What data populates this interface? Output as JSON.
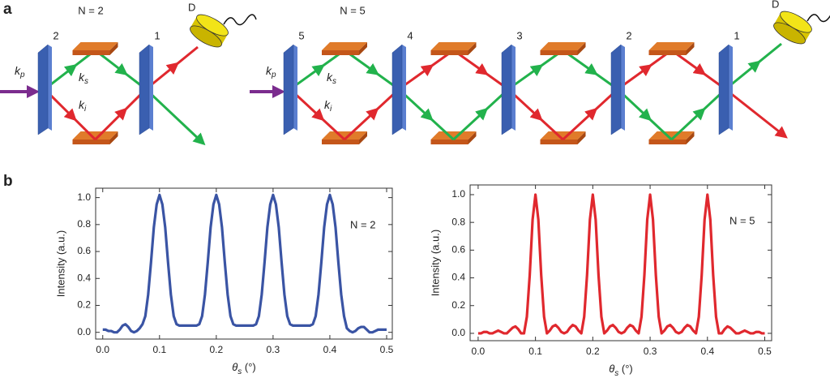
{
  "panel_labels": [
    "a",
    "b"
  ],
  "diagram": {
    "left": {
      "title": "N = 2",
      "detector": "D",
      "splitters": [
        "2",
        "1"
      ],
      "k_labels": [
        {
          "k": "k",
          "sub": "p"
        },
        {
          "k": "k",
          "sub": "s"
        },
        {
          "k": "k",
          "sub": "i"
        }
      ]
    },
    "right": {
      "title": "N = 5",
      "detector": "D",
      "splitters": [
        "5",
        "4",
        "3",
        "2",
        "1"
      ],
      "k_labels": [
        {
          "k": "k",
          "sub": "p"
        },
        {
          "k": "k",
          "sub": "s"
        },
        {
          "k": "k",
          "sub": "i"
        }
      ]
    }
  },
  "chart_data": [
    {
      "type": "line",
      "color": "#3a54a4",
      "annotation": "N = 2",
      "x_label": {
        "symbol": "θ",
        "sub": "s",
        "unit": " (°)"
      },
      "y_label": "Intensity (a.u.)",
      "xlim": [
        -0.0125,
        0.51
      ],
      "ylim": [
        -0.05,
        1.07
      ],
      "xticks": [
        {
          "value": 0,
          "label": "0.0"
        },
        0.1,
        0.2,
        0.3,
        0.4,
        0.5
      ],
      "yticks": [
        {
          "value": 0,
          "label": "0.0"
        },
        0.2,
        0.4,
        0.6,
        0.8,
        {
          "value": 1,
          "label": "1.0"
        }
      ],
      "x": [
        0,
        0.005,
        0.01,
        0.015,
        0.02,
        0.025,
        0.03,
        0.035,
        0.04,
        0.045,
        0.05,
        0.055,
        0.06,
        0.065,
        0.07,
        0.075,
        0.08,
        0.085,
        0.09,
        0.095,
        0.1,
        0.105,
        0.11,
        0.115,
        0.12,
        0.125,
        0.13,
        0.135,
        0.14,
        0.145,
        0.15,
        0.155,
        0.16,
        0.165,
        0.17,
        0.175,
        0.18,
        0.185,
        0.19,
        0.195,
        0.2,
        0.205,
        0.21,
        0.215,
        0.22,
        0.225,
        0.23,
        0.235,
        0.24,
        0.245,
        0.25,
        0.255,
        0.26,
        0.265,
        0.27,
        0.275,
        0.28,
        0.285,
        0.29,
        0.295,
        0.3,
        0.305,
        0.31,
        0.315,
        0.32,
        0.325,
        0.33,
        0.335,
        0.34,
        0.345,
        0.35,
        0.355,
        0.36,
        0.365,
        0.37,
        0.375,
        0.38,
        0.385,
        0.39,
        0.395,
        0.4,
        0.405,
        0.41,
        0.415,
        0.42,
        0.425,
        0.43,
        0.435,
        0.44,
        0.445,
        0.45,
        0.455,
        0.46,
        0.465,
        0.47,
        0.475,
        0.48,
        0.485,
        0.49,
        0.495,
        0.5
      ],
      "values": [
        0.02,
        0.02,
        0.01,
        0.01,
        0,
        0,
        0.02,
        0.05,
        0.06,
        0.04,
        0.01,
        0,
        0.01,
        0.03,
        0.06,
        0.12,
        0.28,
        0.52,
        0.78,
        0.95,
        1.02,
        0.95,
        0.78,
        0.52,
        0.28,
        0.12,
        0.06,
        0.05,
        0.05,
        0.05,
        0.05,
        0.05,
        0.05,
        0.05,
        0.06,
        0.12,
        0.28,
        0.52,
        0.78,
        0.95,
        1.02,
        0.95,
        0.78,
        0.52,
        0.28,
        0.12,
        0.06,
        0.05,
        0.05,
        0.05,
        0.05,
        0.05,
        0.05,
        0.05,
        0.06,
        0.12,
        0.28,
        0.52,
        0.78,
        0.95,
        1.02,
        0.95,
        0.78,
        0.52,
        0.28,
        0.12,
        0.06,
        0.05,
        0.05,
        0.05,
        0.05,
        0.05,
        0.05,
        0.05,
        0.06,
        0.12,
        0.28,
        0.52,
        0.78,
        0.95,
        1.02,
        0.95,
        0.78,
        0.52,
        0.28,
        0.12,
        0.03,
        0.01,
        0,
        0.01,
        0.03,
        0.04,
        0.04,
        0.02,
        0,
        0,
        0.01,
        0.02,
        0.02,
        0.02,
        0.02
      ]
    },
    {
      "type": "line",
      "color": "#e0282e",
      "annotation": "N = 5",
      "x_label": {
        "symbol": "θ",
        "sub": "s",
        "unit": " (°)"
      },
      "y_label": "Intensity (a.u.)",
      "xlim": [
        -0.014,
        0.512
      ],
      "ylim": [
        -0.053,
        1.07
      ],
      "xticks": [
        {
          "value": 0,
          "label": "0.0"
        },
        0.1,
        0.2,
        0.3,
        0.4,
        0.5
      ],
      "yticks": [
        {
          "value": 0,
          "label": "0.0"
        },
        0.2,
        0.4,
        0.6,
        0.8,
        {
          "value": 1,
          "label": "1.0"
        }
      ],
      "x": [
        0,
        0.005,
        0.01,
        0.015,
        0.02,
        0.025,
        0.03,
        0.035,
        0.04,
        0.045,
        0.05,
        0.055,
        0.06,
        0.065,
        0.07,
        0.075,
        0.08,
        0.085,
        0.09,
        0.095,
        0.1,
        0.105,
        0.11,
        0.115,
        0.12,
        0.125,
        0.13,
        0.135,
        0.14,
        0.145,
        0.15,
        0.155,
        0.16,
        0.165,
        0.17,
        0.175,
        0.18,
        0.185,
        0.19,
        0.195,
        0.2,
        0.205,
        0.21,
        0.215,
        0.22,
        0.225,
        0.23,
        0.235,
        0.24,
        0.245,
        0.25,
        0.255,
        0.26,
        0.265,
        0.27,
        0.275,
        0.28,
        0.285,
        0.29,
        0.295,
        0.3,
        0.305,
        0.31,
        0.315,
        0.32,
        0.325,
        0.33,
        0.335,
        0.34,
        0.345,
        0.35,
        0.355,
        0.36,
        0.365,
        0.37,
        0.375,
        0.38,
        0.385,
        0.39,
        0.395,
        0.4,
        0.405,
        0.41,
        0.415,
        0.42,
        0.425,
        0.43,
        0.435,
        0.44,
        0.445,
        0.45,
        0.455,
        0.46,
        0.465,
        0.47,
        0.475,
        0.48,
        0.485,
        0.49,
        0.495,
        0.5
      ],
      "values": [
        0,
        0,
        0.01,
        0.01,
        0,
        0,
        0.01,
        0.02,
        0.01,
        0,
        0,
        0.02,
        0.04,
        0.05,
        0.03,
        0,
        0,
        0.12,
        0.42,
        0.82,
        1.0,
        0.82,
        0.42,
        0.12,
        0,
        0.02,
        0.05,
        0.06,
        0.04,
        0.01,
        0,
        0.01,
        0.04,
        0.06,
        0.05,
        0.02,
        0,
        0.12,
        0.42,
        0.82,
        1.0,
        0.82,
        0.42,
        0.12,
        0,
        0.02,
        0.05,
        0.06,
        0.04,
        0.01,
        0,
        0.01,
        0.04,
        0.06,
        0.05,
        0.02,
        0,
        0.12,
        0.42,
        0.82,
        1.0,
        0.82,
        0.42,
        0.12,
        0,
        0.02,
        0.05,
        0.06,
        0.04,
        0.01,
        0,
        0.01,
        0.04,
        0.06,
        0.05,
        0.02,
        0,
        0.12,
        0.42,
        0.82,
        1.0,
        0.82,
        0.42,
        0.12,
        0,
        0,
        0.03,
        0.05,
        0.04,
        0.02,
        0,
        0,
        0.01,
        0.02,
        0.01,
        0,
        0,
        0.01,
        0.01,
        0,
        0
      ]
    }
  ]
}
